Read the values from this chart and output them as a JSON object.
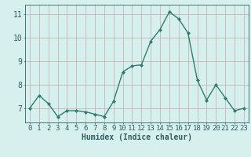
{
  "x": [
    0,
    1,
    2,
    3,
    4,
    5,
    6,
    7,
    8,
    9,
    10,
    11,
    12,
    13,
    14,
    15,
    16,
    17,
    18,
    19,
    20,
    21,
    22,
    23
  ],
  "y": [
    7.0,
    7.55,
    7.2,
    6.65,
    6.9,
    6.9,
    6.85,
    6.75,
    6.65,
    7.3,
    8.55,
    8.8,
    8.85,
    9.85,
    10.35,
    11.1,
    10.8,
    10.2,
    8.2,
    7.35,
    8.0,
    7.45,
    6.9,
    7.0
  ],
  "line_color": "#2e7d6e",
  "marker": "D",
  "marker_size": 2.0,
  "line_width": 1.0,
  "xlabel": "Humidex (Indice chaleur)",
  "xlabel_fontsize": 7,
  "ylim": [
    6.4,
    11.4
  ],
  "xlim": [
    -0.5,
    23.5
  ],
  "yticks": [
    7,
    8,
    9,
    10,
    11
  ],
  "xticks": [
    0,
    1,
    2,
    3,
    4,
    5,
    6,
    7,
    8,
    9,
    10,
    11,
    12,
    13,
    14,
    15,
    16,
    17,
    18,
    19,
    20,
    21,
    22,
    23
  ],
  "xtick_labels": [
    "0",
    "1",
    "2",
    "3",
    "4",
    "5",
    "6",
    "7",
    "8",
    "9",
    "10",
    "11",
    "12",
    "13",
    "14",
    "15",
    "16",
    "17",
    "18",
    "19",
    "20",
    "21",
    "22",
    "23"
  ],
  "background_color": "#d6f0ee",
  "grid_color": "#c4a8a8",
  "tick_color": "#2e5f5f",
  "axis_color": "#2e5f5f",
  "tick_fontsize": 6.5,
  "ylabel_fontsize": 7
}
